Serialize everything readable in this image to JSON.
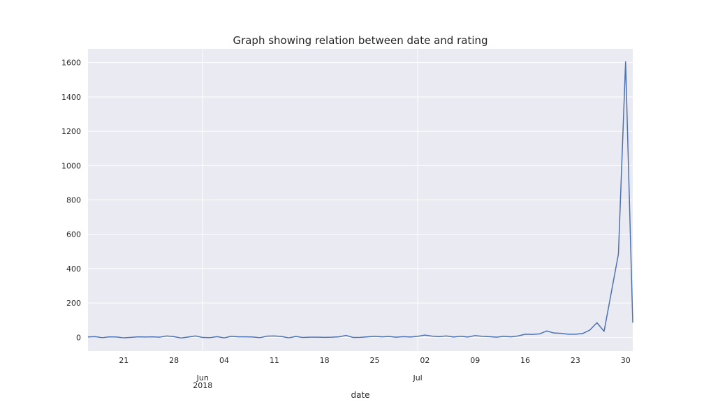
{
  "chart_data": {
    "type": "line",
    "title": "Graph showing relation between date and rating",
    "xlabel": "date",
    "ylabel": "",
    "x_start": "2018-05-16",
    "x_end": "2018-07-31",
    "ylim": [
      -80,
      1680
    ],
    "y_ticks": [
      0,
      200,
      400,
      600,
      800,
      1000,
      1200,
      1400,
      1600
    ],
    "x_ticks_minor": [
      {
        "date": "2018-05-21",
        "label": "21"
      },
      {
        "date": "2018-05-28",
        "label": "28"
      },
      {
        "date": "2018-06-04",
        "label": "04"
      },
      {
        "date": "2018-06-11",
        "label": "11"
      },
      {
        "date": "2018-06-18",
        "label": "18"
      },
      {
        "date": "2018-06-25",
        "label": "25"
      },
      {
        "date": "2018-07-02",
        "label": "02"
      },
      {
        "date": "2018-07-09",
        "label": "09"
      },
      {
        "date": "2018-07-16",
        "label": "16"
      },
      {
        "date": "2018-07-23",
        "label": "23"
      },
      {
        "date": "2018-07-30",
        "label": "30"
      }
    ],
    "x_ticks_major": [
      {
        "date": "2018-06-01",
        "label": "Jun",
        "sublabel": "2018"
      },
      {
        "date": "2018-07-01",
        "label": "Jul",
        "sublabel": ""
      }
    ],
    "grid": true,
    "background": "#eaeaf2",
    "grid_color": "#ffffff",
    "line_color": "#4c72b0",
    "series": [
      {
        "name": "",
        "points": [
          [
            "2018-05-16",
            2
          ],
          [
            "2018-05-17",
            4
          ],
          [
            "2018-05-18",
            -2
          ],
          [
            "2018-05-19",
            3
          ],
          [
            "2018-05-20",
            2
          ],
          [
            "2018-05-21",
            -3
          ],
          [
            "2018-05-22",
            0
          ],
          [
            "2018-05-23",
            3
          ],
          [
            "2018-05-24",
            2
          ],
          [
            "2018-05-25",
            3
          ],
          [
            "2018-05-26",
            1
          ],
          [
            "2018-05-27",
            8
          ],
          [
            "2018-05-28",
            4
          ],
          [
            "2018-05-29",
            -4
          ],
          [
            "2018-05-30",
            2
          ],
          [
            "2018-05-31",
            8
          ],
          [
            "2018-06-01",
            -1
          ],
          [
            "2018-06-02",
            -2
          ],
          [
            "2018-06-03",
            4
          ],
          [
            "2018-06-04",
            -3
          ],
          [
            "2018-06-05",
            6
          ],
          [
            "2018-06-06",
            3
          ],
          [
            "2018-06-07",
            3
          ],
          [
            "2018-06-08",
            2
          ],
          [
            "2018-06-09",
            -2
          ],
          [
            "2018-06-10",
            7
          ],
          [
            "2018-06-11",
            8
          ],
          [
            "2018-06-12",
            5
          ],
          [
            "2018-06-13",
            -3
          ],
          [
            "2018-06-14",
            5
          ],
          [
            "2018-06-15",
            -1
          ],
          [
            "2018-06-16",
            1
          ],
          [
            "2018-06-17",
            1
          ],
          [
            "2018-06-18",
            0
          ],
          [
            "2018-06-19",
            1
          ],
          [
            "2018-06-20",
            3
          ],
          [
            "2018-06-21",
            11
          ],
          [
            "2018-06-22",
            -1
          ],
          [
            "2018-06-23",
            0
          ],
          [
            "2018-06-24",
            3
          ],
          [
            "2018-06-25",
            6
          ],
          [
            "2018-06-26",
            3
          ],
          [
            "2018-06-27",
            5
          ],
          [
            "2018-06-28",
            1
          ],
          [
            "2018-06-29",
            4
          ],
          [
            "2018-06-30",
            2
          ],
          [
            "2018-07-01",
            6
          ],
          [
            "2018-07-02",
            13
          ],
          [
            "2018-07-03",
            7
          ],
          [
            "2018-07-04",
            4
          ],
          [
            "2018-07-05",
            8
          ],
          [
            "2018-07-06",
            2
          ],
          [
            "2018-07-07",
            6
          ],
          [
            "2018-07-08",
            2
          ],
          [
            "2018-07-09",
            10
          ],
          [
            "2018-07-10",
            6
          ],
          [
            "2018-07-11",
            4
          ],
          [
            "2018-07-12",
            1
          ],
          [
            "2018-07-13",
            6
          ],
          [
            "2018-07-14",
            3
          ],
          [
            "2018-07-15",
            8
          ],
          [
            "2018-07-16",
            18
          ],
          [
            "2018-07-17",
            17
          ],
          [
            "2018-07-18",
            20
          ],
          [
            "2018-07-19",
            37
          ],
          [
            "2018-07-20",
            25
          ],
          [
            "2018-07-21",
            23
          ],
          [
            "2018-07-22",
            18
          ],
          [
            "2018-07-23",
            18
          ],
          [
            "2018-07-24",
            22
          ],
          [
            "2018-07-25",
            42
          ],
          [
            "2018-07-26",
            85
          ],
          [
            "2018-07-27",
            35
          ],
          [
            "2018-07-28",
            260
          ],
          [
            "2018-07-29",
            485
          ],
          [
            "2018-07-30",
            1605
          ],
          [
            "2018-07-31",
            85
          ]
        ]
      }
    ]
  }
}
